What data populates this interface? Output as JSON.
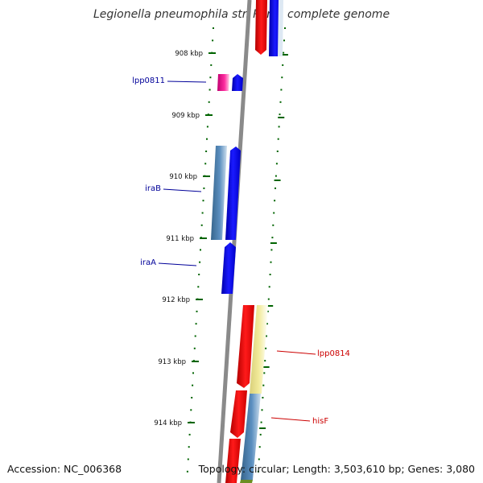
{
  "title": "Legionella pneumophila str. Paris, complete genome",
  "footer": {
    "accession": "Accession: NC_006368",
    "summary": "Topology: circular; Length: 3,503,610 bp; Genes: 3,080"
  },
  "colors": {
    "forward_cds": "#ff0000",
    "reverse_cds": "#0000ff",
    "forward_gene": "#f0e68c",
    "reverse_gene": "#4682b4",
    "pink_gene": "#ff1493",
    "tick": "#006400",
    "forward_label": "#cc0000",
    "reverse_label": "#000099",
    "backbone": "#808080"
  },
  "ticks": [
    {
      "label": "908 kbp"
    },
    {
      "label": "909 kbp"
    },
    {
      "label": "910 kbp"
    },
    {
      "label": "911 kbp"
    },
    {
      "label": "912 kbp"
    },
    {
      "label": "913 kbp"
    },
    {
      "label": "914 kbp"
    }
  ],
  "gene_labels": [
    {
      "text": "lpp0811",
      "strand": "reverse"
    },
    {
      "text": "iraB",
      "strand": "reverse"
    },
    {
      "text": "iraA",
      "strand": "reverse"
    },
    {
      "text": "lpp0814",
      "strand": "forward"
    },
    {
      "text": "hisF",
      "strand": "forward"
    }
  ]
}
